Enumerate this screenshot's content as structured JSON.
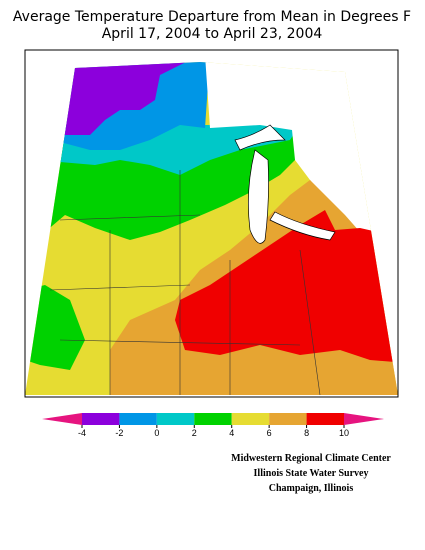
{
  "title": [
    "Average Temperature Departure from Mean in Degrees F",
    "April 17, 2004 to April 23, 2004"
  ],
  "legend": {
    "ticks": [
      -4,
      -2,
      0,
      2,
      4,
      6,
      8,
      10
    ],
    "colors": [
      "#e6147f",
      "#8c00dc",
      "#0096e6",
      "#00c8c8",
      "#00d200",
      "#e6dc32",
      "#e6a532",
      "#f00000",
      "#e6147f"
    ]
  },
  "credits": [
    "Midwestern Regional Climate Center",
    "Illinois State Water Survey",
    "Champaign, Illinois"
  ]
}
